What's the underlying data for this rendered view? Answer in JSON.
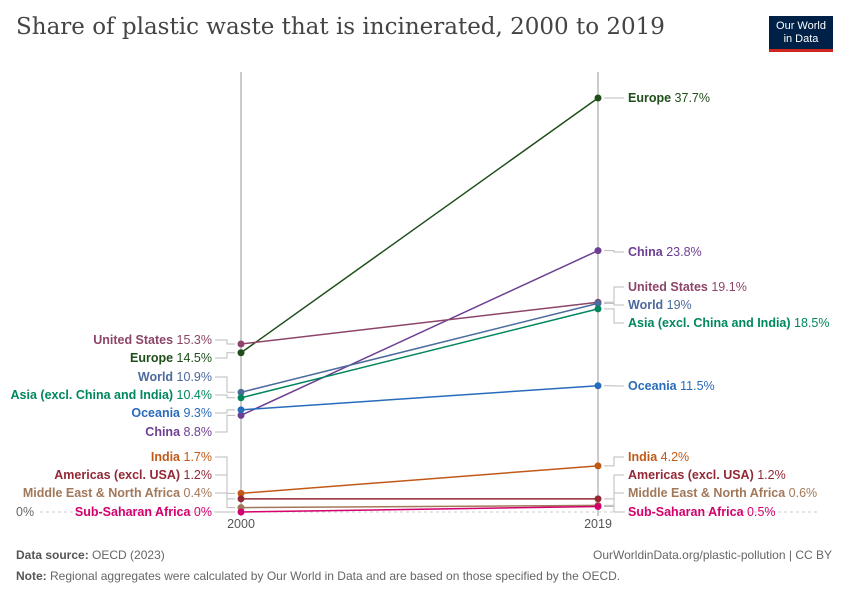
{
  "title": "Share of plastic waste that is incinerated, 2000 to 2019",
  "logo": {
    "line1": "Our World",
    "line2": "in Data"
  },
  "footer": {
    "source_label": "Data source:",
    "source": "OECD (2023)",
    "url": "OurWorldinData.org/plastic-pollution | CC BY",
    "note_label": "Note:",
    "note": "Regional aggregates were calculated by Our World in Data and are based on those specified by the OECD."
  },
  "chart_data": {
    "type": "line",
    "subtype": "slope",
    "title": "Share of plastic waste that is incinerated, 2000 to 2019",
    "x": [
      "2000",
      "2019"
    ],
    "y_tick_labels": [
      "0%"
    ],
    "ylim": [
      0,
      37.7
    ],
    "series": [
      {
        "name": "Europe",
        "values": [
          14.5,
          37.7
        ],
        "labels": [
          "14.5%",
          "37.7%"
        ],
        "color": "#1f4e1a"
      },
      {
        "name": "China",
        "values": [
          8.8,
          23.8
        ],
        "labels": [
          "8.8%",
          "23.8%"
        ],
        "color": "#6d3e91"
      },
      {
        "name": "United States",
        "values": [
          15.3,
          19.1
        ],
        "labels": [
          "15.3%",
          "19.1%"
        ],
        "color": "#8c4569"
      },
      {
        "name": "World",
        "values": [
          10.9,
          19
        ],
        "labels": [
          "10.9%",
          "19%"
        ],
        "color": "#4c6a9c"
      },
      {
        "name": "Asia (excl. China and India)",
        "values": [
          10.4,
          18.5
        ],
        "labels": [
          "10.4%",
          "18.5%"
        ],
        "color": "#00875e"
      },
      {
        "name": "Oceania",
        "values": [
          9.3,
          11.5
        ],
        "labels": [
          "9.3%",
          "11.5%"
        ],
        "color": "#286bbb"
      },
      {
        "name": "India",
        "values": [
          1.7,
          4.2
        ],
        "labels": [
          "1.7%",
          "4.2%"
        ],
        "color": "#c05917"
      },
      {
        "name": "Americas (excl. USA)",
        "values": [
          1.2,
          1.2
        ],
        "labels": [
          "1.2%",
          "1.2%"
        ],
        "color": "#932834"
      },
      {
        "name": "Middle East & North Africa",
        "values": [
          0.4,
          0.6
        ],
        "labels": [
          "0.4%",
          "0.6%"
        ],
        "color": "#a2785a"
      },
      {
        "name": "Sub-Saharan Africa",
        "values": [
          0,
          0.5
        ],
        "labels": [
          "0%",
          "0.5%"
        ],
        "color": "#d4006e"
      }
    ]
  }
}
